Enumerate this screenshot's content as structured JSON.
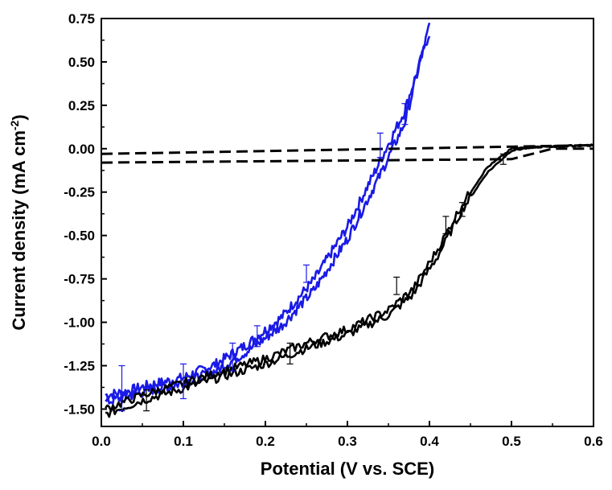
{
  "chart_data": {
    "type": "line",
    "xlabel": "Potential (V vs. SCE)",
    "ylabel": {
      "main": "Current density (mA cm",
      "sup": "-2",
      "close": ")"
    },
    "xlim": [
      0.0,
      0.6
    ],
    "ylim": [
      -1.6,
      0.75
    ],
    "xticks": [
      0.0,
      0.1,
      0.2,
      0.3,
      0.4,
      0.5,
      0.6
    ],
    "xtick_labels": [
      "0.0",
      "0.1",
      "0.2",
      "0.3",
      "0.4",
      "0.5",
      "0.6"
    ],
    "yticks": [
      -1.5,
      -1.25,
      -1.0,
      -0.75,
      -0.5,
      -0.25,
      0.0,
      0.25,
      0.5,
      0.75
    ],
    "ytick_labels": [
      "-1.50",
      "-1.25",
      "-1.00",
      "-0.75",
      "-0.50",
      "-0.25",
      "0.00",
      "0.25",
      "0.50",
      "0.75"
    ],
    "grid": false,
    "series": [
      {
        "color": "#1a1ae6",
        "style": "solid",
        "noise": 0.03,
        "x": [
          0.005,
          0.03,
          0.06,
          0.1,
          0.14,
          0.18,
          0.22,
          0.26,
          0.3,
          0.34,
          0.37,
          0.4
        ],
        "y": [
          -1.42,
          -1.4,
          -1.36,
          -1.32,
          -1.24,
          -1.12,
          -0.97,
          -0.75,
          -0.45,
          -0.07,
          0.22,
          0.67
        ]
      },
      {
        "color": "#1a1ae6",
        "style": "solid",
        "noise": 0.03,
        "x": [
          0.005,
          0.03,
          0.06,
          0.1,
          0.14,
          0.18,
          0.22,
          0.26,
          0.3,
          0.34,
          0.37,
          0.4
        ],
        "y": [
          -1.46,
          -1.43,
          -1.39,
          -1.35,
          -1.28,
          -1.16,
          -1.02,
          -0.81,
          -0.52,
          -0.15,
          0.15,
          0.71
        ]
      },
      {
        "color": "#000000",
        "style": "solid",
        "noise": 0.025,
        "x": [
          0.005,
          0.05,
          0.1,
          0.15,
          0.2,
          0.25,
          0.3,
          0.35,
          0.38,
          0.41,
          0.44,
          0.47,
          0.5,
          0.53,
          0.6
        ],
        "y": [
          -1.53,
          -1.45,
          -1.38,
          -1.31,
          -1.24,
          -1.15,
          -1.07,
          -0.96,
          -0.84,
          -0.62,
          -0.35,
          -0.14,
          -0.01,
          0.01,
          0.02
        ]
      },
      {
        "color": "#000000",
        "style": "solid",
        "noise": 0.025,
        "x": [
          0.005,
          0.05,
          0.1,
          0.15,
          0.2,
          0.25,
          0.3,
          0.35,
          0.38,
          0.41,
          0.44,
          0.47,
          0.5,
          0.53,
          0.6
        ],
        "y": [
          -1.5,
          -1.42,
          -1.35,
          -1.28,
          -1.21,
          -1.12,
          -1.04,
          -0.93,
          -0.81,
          -0.58,
          -0.32,
          -0.11,
          0.0,
          0.01,
          0.02
        ]
      },
      {
        "color": "#000000",
        "style": "dashed",
        "noise": 0,
        "x": [
          0.0,
          0.6
        ],
        "y": [
          -0.03,
          0.02
        ]
      },
      {
        "color": "#000000",
        "style": "dashed",
        "noise": 0,
        "x": [
          0.0,
          0.5,
          0.55,
          0.6
        ],
        "y": [
          -0.08,
          -0.06,
          0.0,
          0.0
        ]
      }
    ],
    "error_bars": [
      {
        "color": "#1a1ae6",
        "x": 0.025,
        "y": -1.38,
        "err": 0.13
      },
      {
        "color": "#1a1ae6",
        "x": 0.1,
        "y": -1.34,
        "err": 0.1
      },
      {
        "color": "#1a1ae6",
        "x": 0.16,
        "y": -1.2,
        "err": 0.08
      },
      {
        "color": "#1a1ae6",
        "x": 0.19,
        "y": -1.08,
        "err": 0.06
      },
      {
        "color": "#1a1ae6",
        "x": 0.25,
        "y": -0.72,
        "err": 0.05
      },
      {
        "color": "#1a1ae6",
        "x": 0.34,
        "y": 0.02,
        "err": 0.07
      },
      {
        "color": "#1a1ae6",
        "x": 0.37,
        "y": 0.2,
        "err": 0.06
      },
      {
        "color": "#000000",
        "x": 0.055,
        "y": -1.45,
        "err": 0.06
      },
      {
        "color": "#000000",
        "x": 0.23,
        "y": -1.18,
        "err": 0.06
      },
      {
        "color": "#000000",
        "x": 0.36,
        "y": -0.79,
        "err": 0.05
      },
      {
        "color": "#000000",
        "x": 0.42,
        "y": -0.44,
        "err": 0.05
      },
      {
        "color": "#000000",
        "x": 0.44,
        "y": -0.35,
        "err": 0.04
      },
      {
        "color": "#000000",
        "x": 0.49,
        "y": -0.06,
        "err": 0.03
      }
    ]
  }
}
